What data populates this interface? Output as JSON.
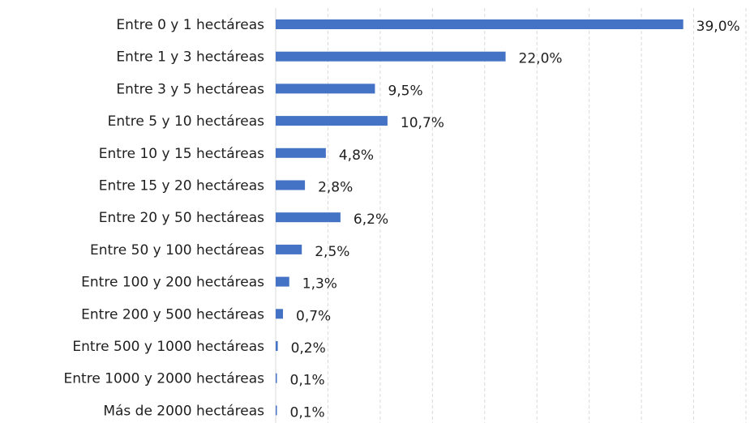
{
  "chart_data": {
    "type": "bar",
    "orientation": "horizontal",
    "title": "",
    "xlabel": "",
    "ylabel": "",
    "categories": [
      "Entre 0 y 1 hectáreas",
      "Entre 1 y 3 hectáreas",
      "Entre 3 y 5 hectáreas",
      "Entre 5 y 10 hectáreas",
      "Entre 10 y 15 hectáreas",
      "Entre 15 y 20 hectáreas",
      "Entre 20 y 50 hectáreas",
      "Entre 50 y 100 hectáreas",
      "Entre 100 y 200 hectáreas",
      "Entre 200 y 500 hectáreas",
      "Entre 500 y 1000 hectáreas",
      "Entre 1000 y 2000 hectáreas",
      "Más de 2000 hectáreas"
    ],
    "values": [
      39.0,
      22.0,
      9.5,
      10.7,
      4.8,
      2.8,
      6.2,
      2.5,
      1.3,
      0.7,
      0.2,
      0.1,
      0.1
    ],
    "value_labels": [
      "39,0%",
      "22,0%",
      "9,5%",
      "10,7%",
      "4,8%",
      "2,8%",
      "6,2%",
      "2,5%",
      "1,3%",
      "0,7%",
      "0,2%",
      "0,1%",
      "0,1%"
    ],
    "xlim": [
      0,
      45
    ],
    "grid": true,
    "bar_color": "#4472c4"
  }
}
